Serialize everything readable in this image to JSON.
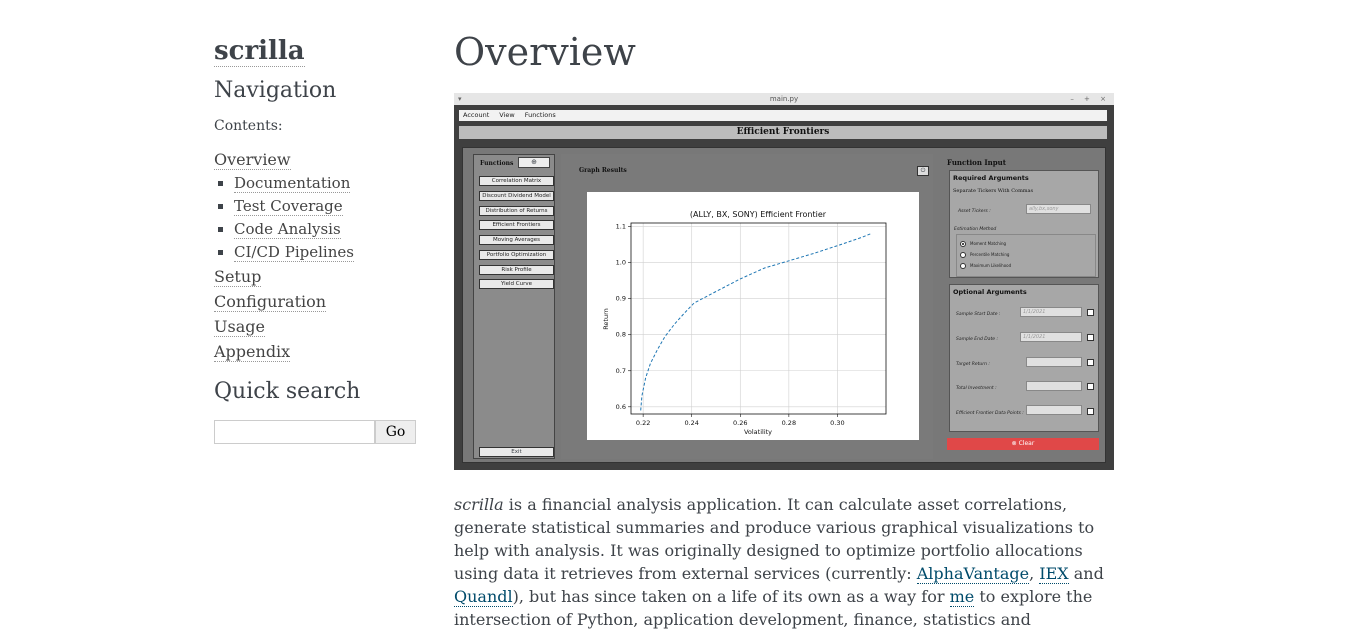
{
  "sidebar": {
    "brand": "scrilla",
    "navigation_heading": "Navigation",
    "contents_caption": "Contents:",
    "toc": [
      {
        "label": "Overview",
        "children": [
          "Documentation",
          "Test Coverage",
          "Code Analysis",
          "CI/CD Pipelines"
        ]
      },
      {
        "label": "Setup"
      },
      {
        "label": "Configuration"
      },
      {
        "label": "Usage"
      },
      {
        "label": "Appendix"
      }
    ],
    "quick_search_heading": "Quick search",
    "search_value": "",
    "search_button": "Go"
  },
  "main": {
    "title": "Overview",
    "paragraph": {
      "emph": "scrilla",
      "text1": " is a financial analysis application. It can calculate asset correlations, generate statistical summaries and produce various graphical visualizations to help with analysis. It was originally designed to optimize portfolio allocations using data it retrieves from external services (currently: ",
      "link1": "AlphaVantage",
      "sep1": ", ",
      "link2": "IEX",
      "sep2": " and ",
      "link3": "Quandl",
      "text2": "), but has since taken on a life of its own as a way for ",
      "link4": "me",
      "text3": " to explore the intersection of Python, application development, finance, statistics and"
    }
  },
  "app": {
    "window_title": "main.py",
    "window_controls": "– + ×",
    "menu": [
      "Account",
      "View",
      "Functions"
    ],
    "heading": "Efficient Frontiers",
    "functions_label": "Functions",
    "functions_add": "⊕",
    "function_buttons": [
      "Correlation Matrix",
      "Discount Dividend Model",
      "Distribution of Returns",
      "Efficient Frontiers",
      "Moving Averages",
      "Portfolio Optimization",
      "Risk Profile",
      "Yield Curve"
    ],
    "exit_label": "Exit",
    "graph_results_label": "Graph Results",
    "graph_icon": "⏻",
    "function_input_label": "Function Input",
    "required_title": "Required Arguments",
    "separate_tickers": "Separate Tickers With Commas",
    "asset_tickers_label": "Asset Tickers :",
    "asset_tickers_placeholder": "ally,bx,sony",
    "estimation_method_label": "Estimation Method",
    "estimation_options": [
      "Moment Matching",
      "Percentile Matching",
      "Maximum Likelihood"
    ],
    "optional_title": "Optional Arguments",
    "optional_fields": [
      {
        "label": "Sample Start Date :",
        "value": "1/1/2021"
      },
      {
        "label": "Sample End Date :",
        "value": "1/1/2021"
      },
      {
        "label": "Target Return :",
        "value": ""
      },
      {
        "label": "Total Investment :",
        "value": ""
      },
      {
        "label": "Efficient Frontier Data Points :",
        "value": ""
      }
    ],
    "clear_label": "⊗ Clear"
  },
  "chart_data": {
    "type": "line",
    "title": "(ALLY, BX, SONY) Efficient Frontier",
    "xlabel": "Volatility",
    "ylabel": "Return",
    "xlim": [
      0.215,
      0.32
    ],
    "ylim": [
      0.58,
      1.11
    ],
    "xticks": [
      "0.22",
      "0.24",
      "0.26",
      "0.28",
      "0.30"
    ],
    "yticks": [
      "0.6",
      "0.7",
      "0.8",
      "0.9",
      "1.0",
      "1.1"
    ],
    "grid": true,
    "line_color": "#1f77b4",
    "line_style": "dashed",
    "x": [
      0.219,
      0.2195,
      0.221,
      0.223,
      0.226,
      0.229,
      0.233,
      0.237,
      0.241,
      0.25,
      0.26,
      0.27,
      0.28,
      0.29,
      0.3,
      0.31,
      0.314
    ],
    "y": [
      0.59,
      0.63,
      0.68,
      0.72,
      0.76,
      0.795,
      0.83,
      0.86,
      0.888,
      0.92,
      0.955,
      0.985,
      1.005,
      1.025,
      1.047,
      1.07,
      1.081
    ]
  }
}
